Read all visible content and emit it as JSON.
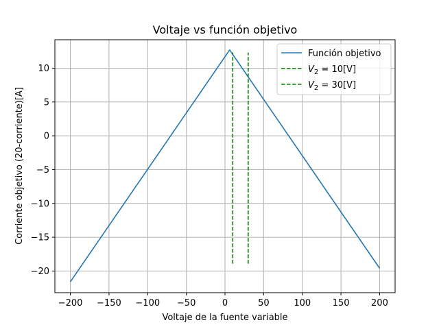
{
  "chart_data": {
    "type": "line",
    "title": "Voltaje vs función objetivo",
    "xlabel": "Voltaje de la fuente variable",
    "ylabel": "Corriente objetivo (20-corriente)[A]",
    "xlim": [
      -220,
      220
    ],
    "ylim": [
      -23.2,
      14.2
    ],
    "xticks": [
      -200,
      -150,
      -100,
      -50,
      0,
      50,
      100,
      150,
      200
    ],
    "xtick_labels": [
      "−200",
      "−150",
      "−100",
      "−50",
      "0",
      "50",
      "100",
      "150",
      "200"
    ],
    "yticks": [
      -20,
      -15,
      -10,
      -5,
      0,
      5,
      10
    ],
    "ytick_labels": [
      "−20",
      "−15",
      "−10",
      "−5",
      "0",
      "5",
      "10"
    ],
    "grid": true,
    "legend_position": "top-right",
    "series": [
      {
        "name": "Función objetivo",
        "style": "solid",
        "color": "#1f77b4",
        "x": [
          -200,
          6,
          200
        ],
        "y": [
          -21.6,
          12.7,
          -19.6
        ]
      },
      {
        "name_prefix": "V",
        "name_sub": "2",
        "name_suffix": " = 10[V]",
        "style": "dashed",
        "color": "#008000",
        "x": [
          10,
          10
        ],
        "y": [
          -18.9,
          12.3
        ]
      },
      {
        "name_prefix": "V",
        "name_sub": "2",
        "name_suffix": " = 30[V]",
        "style": "dashed",
        "color": "#008000",
        "x": [
          30,
          30
        ],
        "y": [
          -18.9,
          12.3
        ]
      }
    ]
  }
}
